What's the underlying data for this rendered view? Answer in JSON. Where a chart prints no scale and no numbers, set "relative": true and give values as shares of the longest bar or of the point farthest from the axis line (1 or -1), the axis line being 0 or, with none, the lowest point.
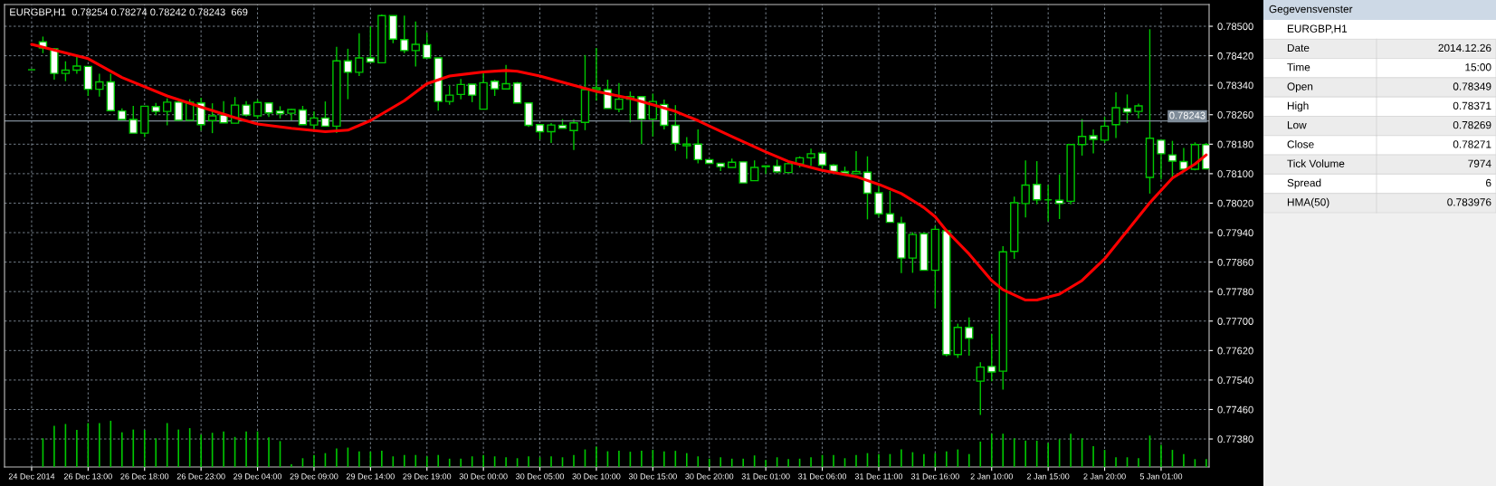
{
  "chart_data": [
    {
      "type": "candlestick",
      "title": "EURGBP,H1  0.78254 0.78274 0.78242 0.78243  669",
      "color": "#00c800",
      "categories": [
        "24 Dec 2014",
        null,
        null,
        null,
        null,
        "26 Dec 13:00",
        null,
        null,
        null,
        null,
        "26 Dec 18:00",
        null,
        null,
        null,
        null,
        "26 Dec 23:00",
        null,
        null,
        null,
        null,
        "29 Dec 04:00",
        null,
        null,
        null,
        null,
        "29 Dec 09:00",
        null,
        null,
        null,
        null,
        "29 Dec 14:00",
        null,
        null,
        null,
        null,
        "29 Dec 19:00",
        null,
        null,
        null,
        null,
        "30 Dec 00:00",
        null,
        null,
        null,
        null,
        "30 Dec 05:00",
        null,
        null,
        null,
        null,
        "30 Dec 10:00",
        null,
        null,
        null,
        null,
        "30 Dec 15:00",
        null,
        null,
        null,
        null,
        "30 Dec 20:00",
        null,
        null,
        null,
        null,
        "31 Dec 01:00",
        null,
        null,
        null,
        null,
        "31 Dec 06:00",
        null,
        null,
        null,
        null,
        "31 Dec 11:00",
        null,
        null,
        null,
        null,
        "31 Dec 16:00",
        null,
        null,
        null,
        null,
        "2 Jan 10:00",
        null,
        null,
        null,
        null,
        "2 Jan 15:00",
        null,
        null,
        null,
        null,
        "2 Jan 20:00",
        null,
        null,
        null,
        null,
        "5 Jan 01:00",
        null,
        null,
        null,
        null
      ],
      "ohlc": [
        [
          0.78382,
          0.78382,
          0.78382,
          0.78382
        ],
        [
          0.78458,
          0.78472,
          0.78427,
          0.78441
        ],
        [
          0.78439,
          0.78441,
          0.78355,
          0.78372
        ],
        [
          0.78372,
          0.78405,
          0.78351,
          0.78381
        ],
        [
          0.78381,
          0.78418,
          0.78371,
          0.78392
        ],
        [
          0.78391,
          0.78391,
          0.78311,
          0.78329
        ],
        [
          0.78329,
          0.78371,
          0.78309,
          0.78349
        ],
        [
          0.78349,
          0.78371,
          0.78269,
          0.78271
        ],
        [
          0.7827,
          0.78277,
          0.78247,
          0.78247
        ],
        [
          0.78247,
          0.78284,
          0.7821,
          0.7821
        ],
        [
          0.7821,
          0.78283,
          0.78199,
          0.78283
        ],
        [
          0.78282,
          0.78292,
          0.78259,
          0.78269
        ],
        [
          0.78269,
          0.78304,
          0.78231,
          0.78294
        ],
        [
          0.78294,
          0.78298,
          0.78245,
          0.78245
        ],
        [
          0.78245,
          0.78302,
          0.78244,
          0.78294
        ],
        [
          0.78292,
          0.78306,
          0.78217,
          0.78233
        ],
        [
          0.78244,
          0.78291,
          0.7821,
          0.78257
        ],
        [
          0.78259,
          0.78297,
          0.78238,
          0.78238
        ],
        [
          0.78237,
          0.78308,
          0.78237,
          0.78286
        ],
        [
          0.78286,
          0.78297,
          0.78255,
          0.78259
        ],
        [
          0.78257,
          0.78301,
          0.78249,
          0.78293
        ],
        [
          0.78292,
          0.78292,
          0.78254,
          0.78265
        ],
        [
          0.7827,
          0.78283,
          0.7825,
          0.78263
        ],
        [
          0.78264,
          0.78276,
          0.78242,
          0.78274
        ],
        [
          0.78273,
          0.78284,
          0.78233,
          0.78233
        ],
        [
          0.78232,
          0.78269,
          0.78218,
          0.78251
        ],
        [
          0.78251,
          0.78296,
          0.78229,
          0.78229
        ],
        [
          0.78229,
          0.78444,
          0.7821,
          0.78406
        ],
        [
          0.78406,
          0.78439,
          0.78302,
          0.78375
        ],
        [
          0.78375,
          0.78481,
          0.78365,
          0.78414
        ],
        [
          0.78414,
          0.785,
          0.78403,
          0.78403
        ],
        [
          0.78401,
          0.78532,
          0.78401,
          0.78529
        ],
        [
          0.78529,
          0.78529,
          0.78454,
          0.78465
        ],
        [
          0.78464,
          0.78529,
          0.78427,
          0.78434
        ],
        [
          0.78434,
          0.78513,
          0.78391,
          0.78451
        ],
        [
          0.7845,
          0.78483,
          0.78414,
          0.78414
        ],
        [
          0.78414,
          0.78414,
          0.78271,
          0.78296
        ],
        [
          0.78296,
          0.7834,
          0.78287,
          0.78313
        ],
        [
          0.78315,
          0.78357,
          0.78302,
          0.78342
        ],
        [
          0.78343,
          0.78343,
          0.78294,
          0.78313
        ],
        [
          0.78275,
          0.78378,
          0.78275,
          0.78347
        ],
        [
          0.78351,
          0.78355,
          0.78311,
          0.7833
        ],
        [
          0.7833,
          0.78395,
          0.7833,
          0.78344
        ],
        [
          0.78346,
          0.78349,
          0.78292,
          0.78292
        ],
        [
          0.78292,
          0.78292,
          0.78227,
          0.78231
        ],
        [
          0.78233,
          0.78233,
          0.78193,
          0.78214
        ],
        [
          0.78214,
          0.78237,
          0.78183,
          0.78232
        ],
        [
          0.78231,
          0.78248,
          0.78223,
          0.78223
        ],
        [
          0.78217,
          0.78248,
          0.78164,
          0.78238
        ],
        [
          0.78239,
          0.78422,
          0.78218,
          0.78328
        ],
        [
          0.78328,
          0.78441,
          0.78298,
          0.78333
        ],
        [
          0.78328,
          0.78355,
          0.78277,
          0.78277
        ],
        [
          0.78275,
          0.78346,
          0.78267,
          0.78302
        ],
        [
          0.78302,
          0.78323,
          0.78239,
          0.78309
        ],
        [
          0.78309,
          0.78309,
          0.7818,
          0.78248
        ],
        [
          0.78248,
          0.78317,
          0.78201,
          0.78296
        ],
        [
          0.78288,
          0.78301,
          0.7822,
          0.78231
        ],
        [
          0.78231,
          0.78286,
          0.78162,
          0.78182
        ],
        [
          0.78176,
          0.78199,
          0.7814,
          0.7818
        ],
        [
          0.7818,
          0.7822,
          0.78128,
          0.78138
        ],
        [
          0.78138,
          0.78138,
          0.78128,
          0.78128
        ],
        [
          0.78128,
          0.78128,
          0.78107,
          0.78119
        ],
        [
          0.78117,
          0.78141,
          0.78117,
          0.78131
        ],
        [
          0.78132,
          0.78132,
          0.78075,
          0.78075
        ],
        [
          0.78081,
          0.78136,
          0.78081,
          0.78117
        ],
        [
          0.78119,
          0.78121,
          0.78099,
          0.78121
        ],
        [
          0.78121,
          0.78138,
          0.78101,
          0.78105
        ],
        [
          0.78103,
          0.78134,
          0.78103,
          0.78127
        ],
        [
          0.78126,
          0.78147,
          0.78117,
          0.78143
        ],
        [
          0.78143,
          0.78168,
          0.78122,
          0.78154
        ],
        [
          0.78156,
          0.78162,
          0.78113,
          0.78123
        ],
        [
          0.78123,
          0.78126,
          0.78106,
          0.78106
        ],
        [
          0.78106,
          0.78119,
          0.78101,
          0.78101
        ],
        [
          0.781,
          0.78161,
          0.781,
          0.78106
        ],
        [
          0.78104,
          0.78147,
          0.77976,
          0.78047
        ],
        [
          0.78048,
          0.78067,
          0.77983,
          0.77991
        ],
        [
          0.77991,
          0.78053,
          0.77968,
          0.77968
        ],
        [
          0.77966,
          0.77983,
          0.7783,
          0.77871
        ],
        [
          0.77871,
          0.77941,
          0.77831,
          0.77935
        ],
        [
          0.77937,
          0.77941,
          0.77838,
          0.77838
        ],
        [
          0.77838,
          0.77958,
          0.77735,
          0.77949
        ],
        [
          0.77945,
          0.77949,
          0.77604,
          0.77609
        ],
        [
          0.77609,
          0.77693,
          0.776,
          0.77683
        ],
        [
          0.77683,
          0.7771,
          0.77606,
          0.77653
        ],
        [
          0.77537,
          0.77588,
          0.77445,
          0.77575
        ],
        [
          0.77577,
          0.77665,
          0.77537,
          0.77562
        ],
        [
          0.77564,
          0.77903,
          0.77514,
          0.77888
        ],
        [
          0.77889,
          0.78038,
          0.77869,
          0.78021
        ],
        [
          0.78019,
          0.78136,
          0.77981,
          0.78069
        ],
        [
          0.78071,
          0.78134,
          0.78017,
          0.78029
        ],
        [
          0.78029,
          0.78069,
          0.7797,
          0.78029
        ],
        [
          0.78028,
          0.78098,
          0.77977,
          0.78019
        ],
        [
          0.78025,
          0.7818,
          0.78017,
          0.78179
        ],
        [
          0.78179,
          0.78248,
          0.78149,
          0.78201
        ],
        [
          0.78203,
          0.7822,
          0.78155,
          0.78193
        ],
        [
          0.78191,
          0.78254,
          0.78183,
          0.78229
        ],
        [
          0.78233,
          0.78321,
          0.78197,
          0.78279
        ],
        [
          0.78277,
          0.78315,
          0.78237,
          0.78267
        ],
        [
          0.78269,
          0.7829,
          0.7825,
          0.78284
        ],
        [
          0.7809,
          0.78492,
          0.78046,
          0.78196
        ],
        [
          0.78191,
          0.78191,
          0.78085,
          0.78154
        ],
        [
          0.78151,
          0.78189,
          0.78088,
          0.78134
        ],
        [
          0.78133,
          0.7817,
          0.78112,
          0.78112
        ],
        [
          0.78112,
          0.78185,
          0.78109,
          0.78179
        ],
        [
          0.78179,
          0.78183,
          0.78113,
          0.78113
        ]
      ],
      "series": [
        {
          "type": "line",
          "color": "#ff0000",
          "values": [
            0.78451,
            null,
            null,
            null,
            null,
            0.78412,
            null,
            null,
            0.78361,
            null,
            null,
            null,
            0.78311,
            null,
            null,
            0.78281,
            null,
            null,
            0.78252,
            null,
            0.78235,
            null,
            null,
            0.78223,
            null,
            null,
            0.78214,
            null,
            0.78218,
            null,
            0.78244,
            null,
            null,
            0.78298,
            null,
            0.78344,
            null,
            0.78365,
            null,
            null,
            0.78376,
            null,
            0.7838,
            0.78378,
            null,
            0.78365,
            null,
            null,
            0.7834,
            null,
            0.78323,
            null,
            null,
            0.78304,
            null,
            0.78287,
            null,
            0.78269,
            null,
            0.78244,
            null,
            null,
            0.78201,
            null,
            null,
            0.78159,
            null,
            0.78133,
            null,
            null,
            0.78109,
            null,
            null,
            0.78092,
            null,
            0.78071,
            null,
            0.78046,
            null,
            0.78008,
            0.77983,
            0.77945,
            null,
            0.77882,
            null,
            0.7781,
            0.77785,
            null,
            0.77757,
            0.77757,
            null,
            0.77773,
            null,
            0.7781,
            null,
            0.77869,
            null,
            0.77945,
            null,
            0.78021,
            null,
            0.78088,
            null,
            0.78126,
            0.78151
          ]
        }
      ],
      "ylim": [
        0.77304,
        0.78559
      ],
      "yticks": [
        {
          "value": 0.7738,
          "label": "0.77380"
        },
        {
          "value": 0.7746,
          "label": "0.77460"
        },
        {
          "value": 0.7754,
          "label": "0.77540"
        },
        {
          "value": 0.7762,
          "label": "0.77620"
        },
        {
          "value": 0.777,
          "label": "0.77700"
        },
        {
          "value": 0.7778,
          "label": "0.77780"
        },
        {
          "value": 0.7786,
          "label": "0.77860"
        },
        {
          "value": 0.7794,
          "label": "0.77940"
        },
        {
          "value": 0.7802,
          "label": "0.78020"
        },
        {
          "value": 0.781,
          "label": "0.78100"
        },
        {
          "value": 0.7818,
          "label": "0.78180"
        },
        {
          "value": 0.7826,
          "label": "0.78260"
        },
        {
          "value": 0.7834,
          "label": "0.78340"
        },
        {
          "value": 0.7842,
          "label": "0.78420"
        },
        {
          "value": 0.785,
          "label": "0.78500"
        }
      ],
      "ref_lines": [
        {
          "axis": "y",
          "value": 0.78243,
          "label": "0.78243",
          "color": "#7f8c99"
        }
      ],
      "grid": true
    },
    {
      "type": "bar",
      "relative": true,
      "color": "#00c800",
      "categories": [
        null,
        null,
        null,
        null,
        null,
        null,
        null,
        null,
        null,
        null,
        null,
        null,
        null,
        null,
        null,
        null,
        null,
        null,
        null,
        null,
        null,
        null,
        null,
        null,
        null,
        null,
        null,
        null,
        null,
        null,
        null,
        null,
        null,
        null,
        null,
        null,
        null,
        null,
        null,
        null,
        null,
        null,
        null,
        null,
        null,
        null,
        null,
        null,
        null,
        null,
        null,
        null,
        null,
        null,
        null,
        null,
        null,
        null,
        null,
        null,
        null,
        null,
        null,
        null,
        null,
        null,
        null,
        null,
        null,
        null,
        null,
        null,
        null,
        null,
        null,
        null,
        null,
        null,
        null,
        null,
        null,
        null,
        null,
        null,
        null,
        null,
        null,
        null,
        null,
        null,
        null,
        null,
        null,
        null,
        null,
        null,
        null,
        null,
        null,
        null,
        null,
        null,
        null,
        null,
        null
      ],
      "values": [
        null,
        0.62,
        0.89,
        0.93,
        0.8,
        0.95,
        0.95,
        1,
        0.75,
        0.81,
        0.8,
        0.62,
        0.95,
        0.81,
        0.84,
        0.7,
        0.74,
        0.77,
        0.65,
        0.77,
        0.77,
        0.64,
        0.56,
        0.06,
        0.19,
        0.26,
        0.3,
        0.4,
        0.42,
        0.34,
        0.33,
        0.35,
        0.23,
        0.26,
        0.26,
        0.23,
        0.26,
        0.18,
        0.18,
        0.23,
        0.26,
        0.23,
        0.21,
        0.19,
        0.23,
        0.21,
        0.23,
        0.21,
        0.26,
        0.38,
        0.44,
        0.34,
        0.35,
        0.33,
        0.35,
        0.37,
        0.34,
        0.35,
        0.3,
        0.23,
        0.18,
        0.21,
        0.18,
        0.18,
        0.25,
        0.15,
        0.21,
        0.17,
        0.18,
        0.21,
        0.26,
        0.26,
        0.19,
        0.26,
        0.3,
        0.28,
        0.28,
        0.38,
        0.32,
        0.28,
        0.3,
        0.34,
        0.38,
        0.28,
        0.55,
        0.72,
        0.72,
        0.62,
        0.57,
        0.57,
        0.52,
        0.6,
        0.72,
        0.62,
        0.45,
        0.37,
        0.21,
        0.21,
        0.19,
        0.68,
        0.48,
        0.37,
        0.28,
        0.17,
        0.17
      ]
    },
    {
      "type": "other",
      "title": "Gegevensvenster",
      "annotations": [
        "EURGBP,H1",
        "Date",
        "2014.12.26",
        "Time",
        "15:00",
        "Open",
        "0.78349",
        "High",
        "0.78371",
        "Low",
        "0.78269",
        "Close",
        "0.78271",
        "Tick Volume",
        "7974",
        "Spread",
        "6",
        "HMA(50)",
        "0.783976"
      ]
    }
  ]
}
